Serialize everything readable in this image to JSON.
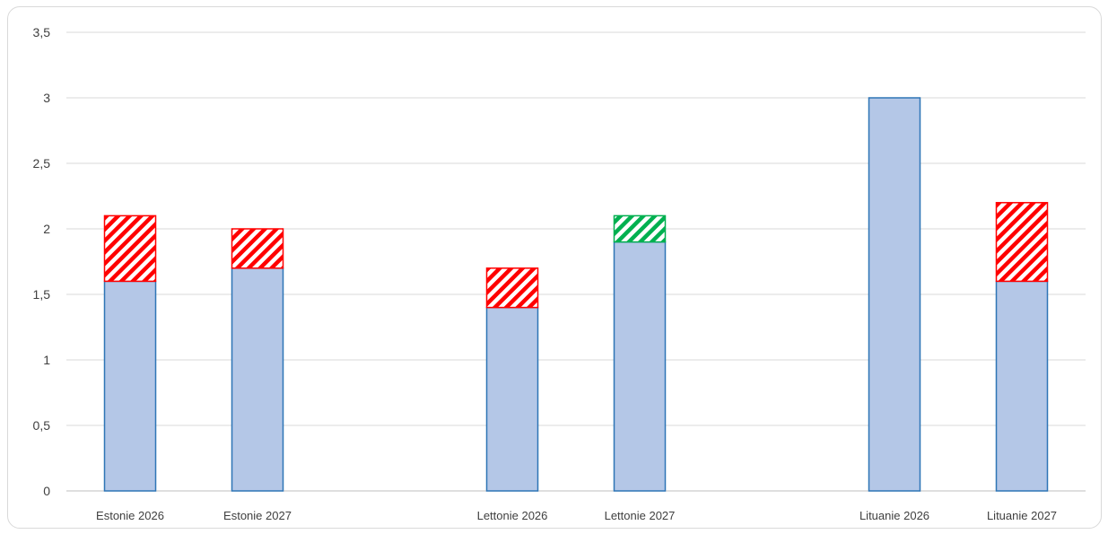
{
  "chart_data": {
    "type": "bar",
    "stacked": true,
    "categories": [
      "Estonie 2026",
      "Estonie 2027",
      "Lettonie 2026",
      "Lettonie 2027",
      "Lituanie 2026",
      "Lituanie 2027"
    ],
    "groups": [
      [
        "Estonie 2026",
        "Estonie 2027"
      ],
      [
        "Lettonie 2026",
        "Lettonie 2027"
      ],
      [
        "Lituanie 2026",
        "Lituanie 2027"
      ]
    ],
    "series": [
      {
        "values": [
          1.6,
          1.7,
          1.4,
          1.9,
          3.0,
          1.6
        ],
        "color": "#b4c7e7",
        "border": "#2e75b6",
        "pattern": "solid"
      },
      {
        "values": [
          0.5,
          0.3,
          0.3,
          0.0,
          0.0,
          0.6
        ],
        "color": "#ff0000",
        "pattern": "hatch"
      },
      {
        "values": [
          0.0,
          0.0,
          0.0,
          0.2,
          0.0,
          0.0
        ],
        "color": "#00b050",
        "pattern": "hatch"
      }
    ],
    "ylim": [
      0,
      3.5
    ],
    "yticks": [
      "0",
      "0,5",
      "1",
      "1,5",
      "2",
      "2,5",
      "3",
      "3,5"
    ],
    "grid": true,
    "legend": "none"
  }
}
